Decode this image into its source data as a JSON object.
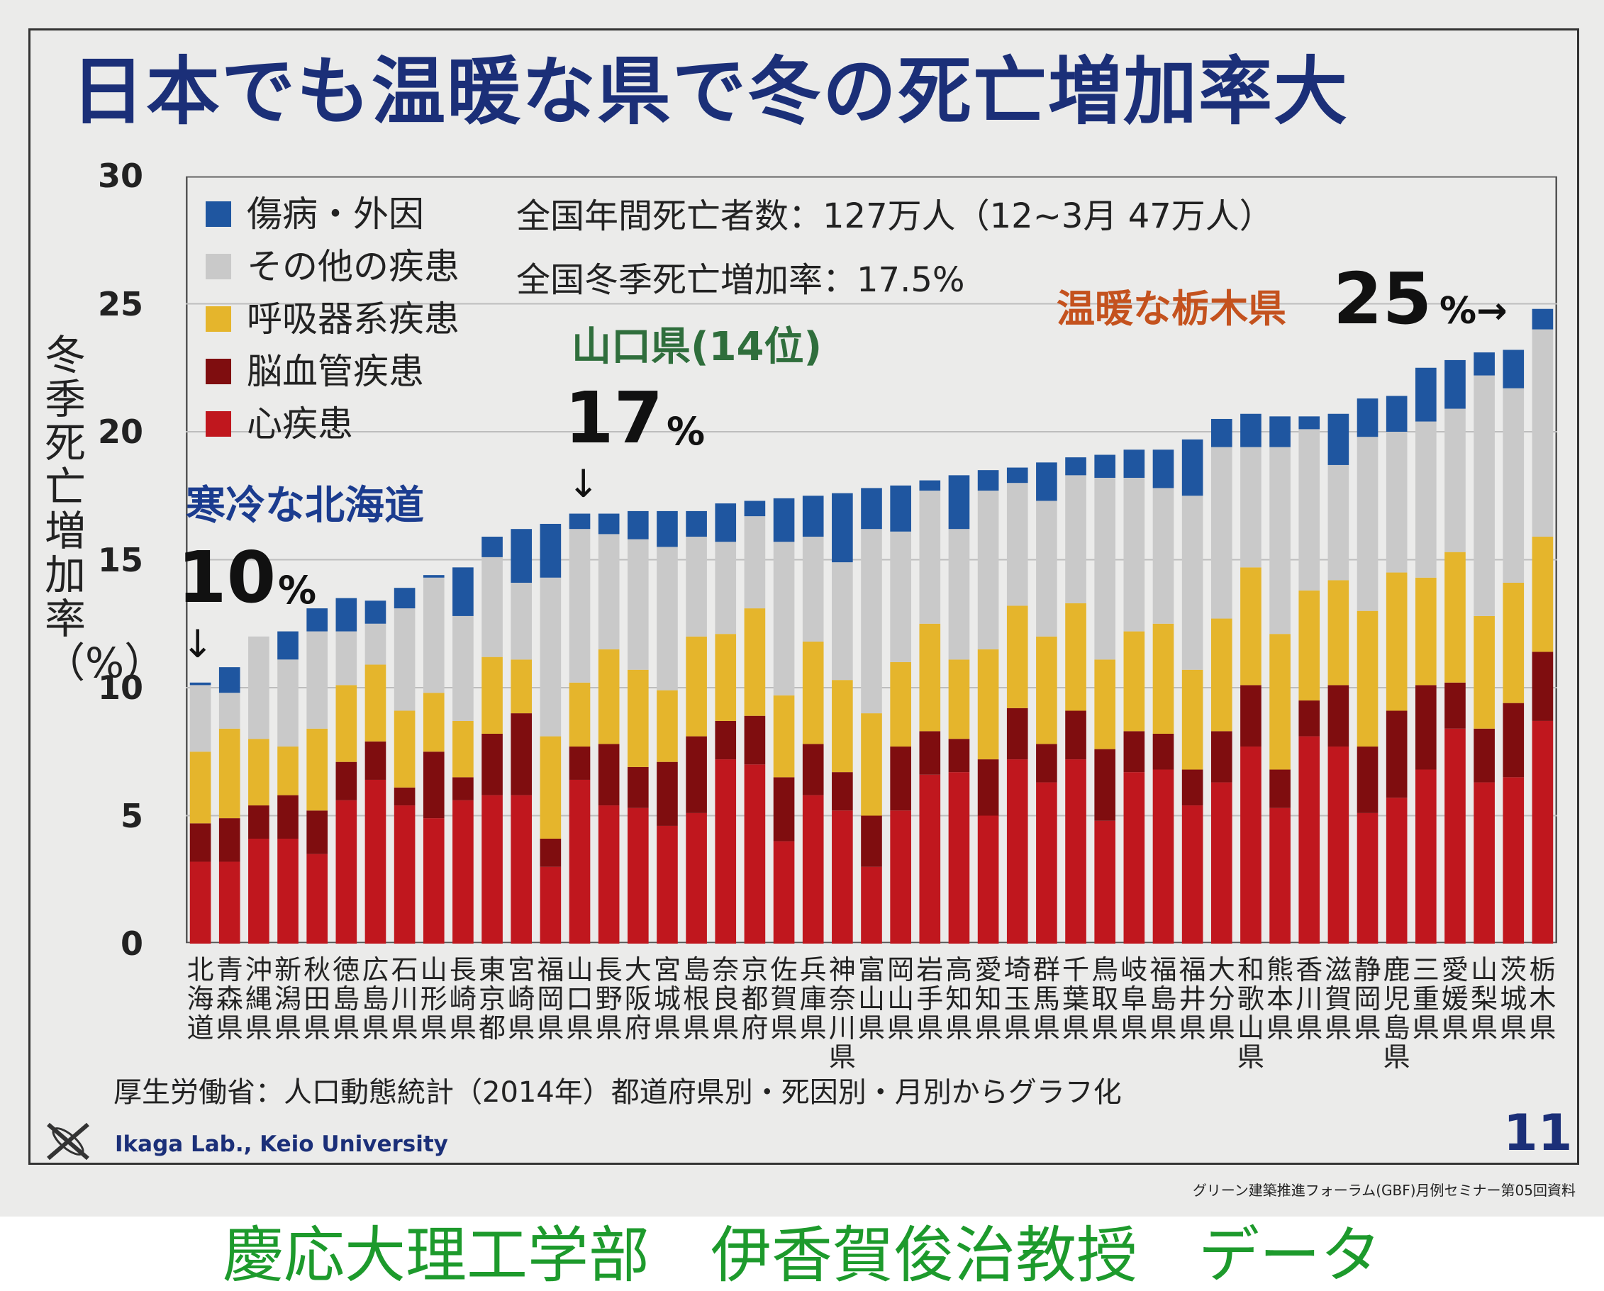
{
  "title": "日本でも温暖な県で冬の死亡増加率大",
  "chart_data": {
    "type": "bar",
    "stacked": true,
    "ylabel": "冬季死亡増加率（%）",
    "ylim": [
      0,
      30
    ],
    "yticks": [
      "0",
      "5",
      "10",
      "15",
      "20",
      "25",
      "30"
    ],
    "grid": true,
    "legend_placement": "top-left",
    "categories": [
      "北海道",
      "青森県",
      "沖縄県",
      "新潟県",
      "秋田県",
      "徳島県",
      "広島県",
      "石川県",
      "山形県",
      "長崎県",
      "東京都",
      "宮崎県",
      "福岡県",
      "山口県",
      "長野県",
      "大阪府",
      "宮城県",
      "島根県",
      "奈良県",
      "京都府",
      "佐賀県",
      "兵庫県",
      "神奈川県",
      "富山県",
      "岡山県",
      "岩手県",
      "高知県",
      "愛知県",
      "埼玉県",
      "群馬県",
      "千葉県",
      "鳥取県",
      "岐阜県",
      "福島県",
      "福井県",
      "大分県",
      "和歌山県",
      "熊本県",
      "香川県",
      "滋賀県",
      "静岡県",
      "鹿児島県",
      "三重県",
      "愛媛県",
      "山梨県",
      "茨城県",
      "栃木県"
    ],
    "series": [
      {
        "name": "心疾患",
        "color": "#c0171e",
        "values": [
          3.2,
          3.2,
          4.1,
          4.1,
          3.5,
          5.6,
          6.4,
          5.4,
          4.9,
          5.6,
          5.8,
          5.8,
          3.0,
          6.4,
          5.4,
          5.3,
          4.6,
          5.1,
          7.2,
          7.0,
          4.0,
          5.8,
          5.2,
          3.0,
          5.2,
          6.6,
          6.7,
          5.0,
          7.2,
          6.3,
          7.2,
          4.8,
          6.7,
          6.8,
          5.4,
          6.3,
          7.7,
          5.3,
          8.1,
          7.7,
          5.1,
          5.7,
          6.8,
          8.4,
          6.3,
          6.5,
          8.7
        ]
      },
      {
        "name": "脳血管疾患",
        "color": "#7f0d0f",
        "values": [
          1.5,
          1.7,
          1.3,
          1.7,
          1.7,
          1.5,
          1.5,
          0.7,
          2.6,
          0.9,
          2.4,
          3.2,
          1.1,
          1.3,
          2.4,
          1.6,
          2.5,
          3.0,
          1.5,
          1.9,
          2.5,
          2.0,
          1.5,
          2.0,
          2.5,
          1.7,
          1.3,
          2.2,
          2.0,
          1.5,
          1.9,
          2.8,
          1.6,
          1.4,
          1.4,
          2.0,
          2.4,
          1.5,
          1.4,
          2.4,
          2.6,
          3.4,
          3.3,
          1.8,
          2.1,
          2.9,
          2.7
        ]
      },
      {
        "name": "呼吸器系疾患",
        "color": "#e5b52c",
        "values": [
          2.8,
          3.5,
          2.6,
          1.9,
          3.2,
          3.0,
          3.0,
          3.0,
          2.3,
          2.2,
          3.0,
          2.1,
          4.0,
          2.5,
          3.7,
          3.8,
          2.8,
          3.9,
          3.4,
          4.2,
          3.2,
          4.0,
          3.6,
          4.0,
          3.3,
          4.2,
          3.1,
          4.3,
          4.0,
          4.2,
          4.2,
          3.5,
          3.9,
          4.3,
          3.9,
          4.4,
          4.6,
          5.3,
          4.3,
          4.1,
          5.3,
          5.4,
          4.2,
          5.1,
          4.4,
          4.7,
          4.5
        ]
      },
      {
        "name": "その他の疾患",
        "color": "#c9c9c9",
        "values": [
          2.6,
          1.4,
          4.0,
          3.4,
          3.8,
          2.1,
          1.6,
          4.0,
          4.5,
          4.1,
          3.9,
          3.0,
          6.2,
          6.0,
          4.5,
          5.1,
          5.6,
          3.9,
          3.6,
          3.6,
          6.0,
          4.1,
          4.6,
          7.2,
          5.1,
          5.2,
          5.1,
          6.2,
          4.8,
          5.3,
          5.0,
          7.1,
          6.0,
          5.3,
          6.8,
          6.7,
          4.7,
          7.3,
          6.3,
          4.5,
          6.8,
          5.5,
          6.1,
          5.6,
          9.4,
          7.6,
          8.1
        ]
      },
      {
        "name": "傷病・外因",
        "color": "#1f56a0",
        "values": [
          0.1,
          1.0,
          0.0,
          1.1,
          0.9,
          1.3,
          0.9,
          0.8,
          0.1,
          1.9,
          0.8,
          2.1,
          2.1,
          0.6,
          0.8,
          1.1,
          1.4,
          1.0,
          1.5,
          0.6,
          1.7,
          1.6,
          2.7,
          1.6,
          1.8,
          0.4,
          2.1,
          0.8,
          0.6,
          1.5,
          0.7,
          0.9,
          1.1,
          1.5,
          2.2,
          1.1,
          1.3,
          1.2,
          0.5,
          2.0,
          1.5,
          1.4,
          2.1,
          1.9,
          0.9,
          1.5,
          0.8
        ]
      }
    ],
    "legend_order": [
      "傷病・外因",
      "その他の疾患",
      "呼吸器系疾患",
      "脳血管疾患",
      "心疾患"
    ],
    "annotations": {
      "national_deaths": "全国年間死亡者数：127万人（12~3月 47万人）",
      "national_rate": "全国冬季死亡増加率：17.5%",
      "tochigi_label": "温暖な栃木県",
      "tochigi_value": "25",
      "tochigi_unit": "%→",
      "yamaguchi_label": "山口県(14位)",
      "yamaguchi_value": "17",
      "yamaguchi_unit": "%",
      "hokkaido_label": "寒冷な北海道",
      "hokkaido_value": "10",
      "hokkaido_unit": "%",
      "arrow_down": "↓"
    }
  },
  "source": "厚生労働省：人口動態統計（2014年）都道府県別・死因別・月別からグラフ化",
  "footer": {
    "lab": "Ikaga Lab., Keio University",
    "page_number": "11",
    "seminar": "グリーン建築推進フォーラム(GBF)月例セミナー第05回資料"
  },
  "caption": "慶応大理工学部　伊香賀俊治教授　データ",
  "colors": {
    "title": "#1b2f78",
    "tochigi": "#c4521e",
    "yamaguchi": "#2f6e3c",
    "hokkaido": "#1b3c8f",
    "caption": "#1d9a2c"
  }
}
